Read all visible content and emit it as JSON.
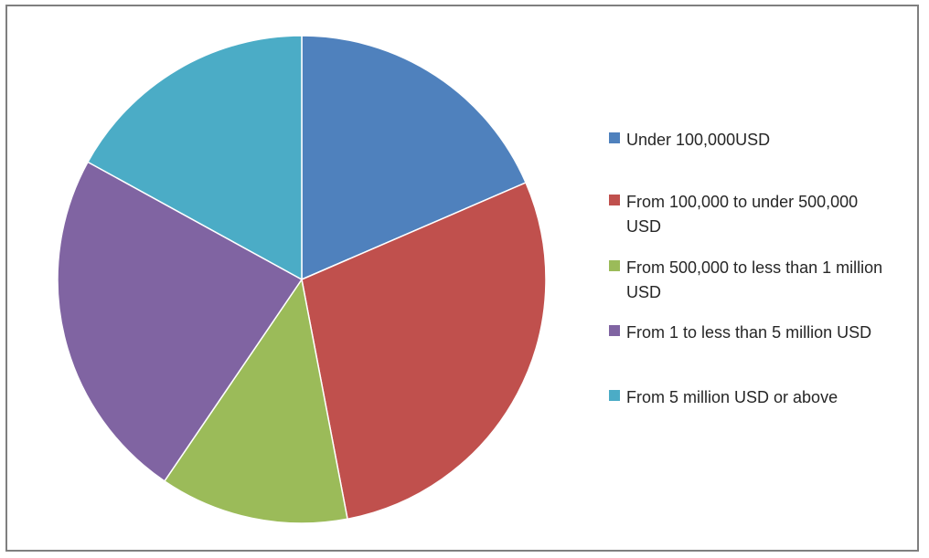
{
  "chart_data": {
    "type": "pie",
    "title": "",
    "legend_position": "right",
    "slices": [
      {
        "label": "Under 100,000USD",
        "value": 18.5,
        "color": "#4F81BD"
      },
      {
        "label": "From 100,000 to under 500,000 USD",
        "value": 28.5,
        "color": "#C0504D"
      },
      {
        "label": "From 500,000 to less than 1 million USD",
        "value": 12.5,
        "color": "#9BBB59"
      },
      {
        "label": "From 1 to less than 5 million USD",
        "value": 23.5,
        "color": "#8064A2"
      },
      {
        "label": "From 5 million USD or above",
        "value": 17.0,
        "color": "#4BACC6"
      }
    ]
  }
}
